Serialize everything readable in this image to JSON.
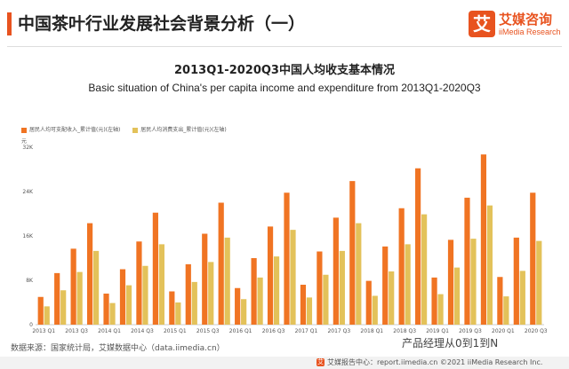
{
  "header": {
    "title": "中国茶叶行业发展社会背景分析（一）",
    "logo_mark": "艾",
    "logo_cn": "艾媒咨询",
    "logo_en": "iiMedia Research"
  },
  "chart_data": {
    "type": "bar",
    "title": "2013Q1-2020Q3中国人均收支基本情况",
    "subtitle": "Basic situation of China's per capita income and expenditure from 2013Q1-2020Q3",
    "y_unit": "元",
    "ylim": [
      0,
      32000
    ],
    "y_ticks": [
      {
        "value": 0,
        "label": "0"
      },
      {
        "value": 8000,
        "label": "8K"
      },
      {
        "value": 16000,
        "label": "16K"
      },
      {
        "value": 24000,
        "label": "24K"
      },
      {
        "value": 32000,
        "label": "32K"
      }
    ],
    "categories": [
      "2013 Q1",
      "2013 Q2",
      "2013 Q3",
      "2013 Q4",
      "2014 Q1",
      "2014 Q2",
      "2014 Q3",
      "2014 Q4",
      "2015 Q1",
      "2015 Q2",
      "2015 Q3",
      "2015 Q4",
      "2016 Q1",
      "2016 Q2",
      "2016 Q3",
      "2016 Q4",
      "2017 Q1",
      "2017 Q2",
      "2017 Q3",
      "2017 Q4",
      "2018 Q1",
      "2018 Q2",
      "2018 Q3",
      "2018 Q4",
      "2019 Q1",
      "2019 Q2",
      "2019 Q3",
      "2019 Q4",
      "2020 Q1",
      "2020 Q2",
      "2020 Q3"
    ],
    "x_tick_labels": [
      "2013 Q1",
      "2013 Q3",
      "2014 Q1",
      "2014 Q3",
      "2015 Q1",
      "2015 Q3",
      "2016 Q1",
      "2016 Q3",
      "2017 Q1",
      "2017 Q3",
      "2018 Q1",
      "2018 Q3",
      "2019 Q1",
      "2019 Q3",
      "2020 Q1",
      "2020 Q3"
    ],
    "series": [
      {
        "name": "居民人均可支配收入_累计值(元)(左轴)",
        "color": "#f07423",
        "values": [
          5000,
          9300,
          13700,
          18300,
          5600,
          10000,
          15000,
          20200,
          6000,
          10900,
          16400,
          22000,
          6600,
          12000,
          17700,
          23800,
          7200,
          13200,
          19300,
          25900,
          7900,
          14100,
          21000,
          28200,
          8500,
          15300,
          22900,
          30700,
          8600,
          15700,
          23800
        ]
      },
      {
        "name": "居民人均消费支出_累计值(元)(左轴)",
        "color": "#e3c25a",
        "values": [
          3300,
          6200,
          9500,
          13300,
          3900,
          7100,
          10600,
          14500,
          4000,
          7700,
          11300,
          15700,
          4600,
          8500,
          12300,
          17100,
          4900,
          9000,
          13300,
          18300,
          5200,
          9600,
          14500,
          19900,
          5500,
          10300,
          15500,
          21500,
          5100,
          9700,
          15100
        ]
      }
    ],
    "legend": "top-left",
    "grid": false
  },
  "footer": {
    "source": "数据来源：国家统计局，艾媒数据中心（data.iimedia.cn）",
    "watermark": "产品经理从0到1到N",
    "report_mark": "艾",
    "report": "艾媒报告中心：report.iimedia.cn  ©2021  iiMedia Research  Inc."
  }
}
